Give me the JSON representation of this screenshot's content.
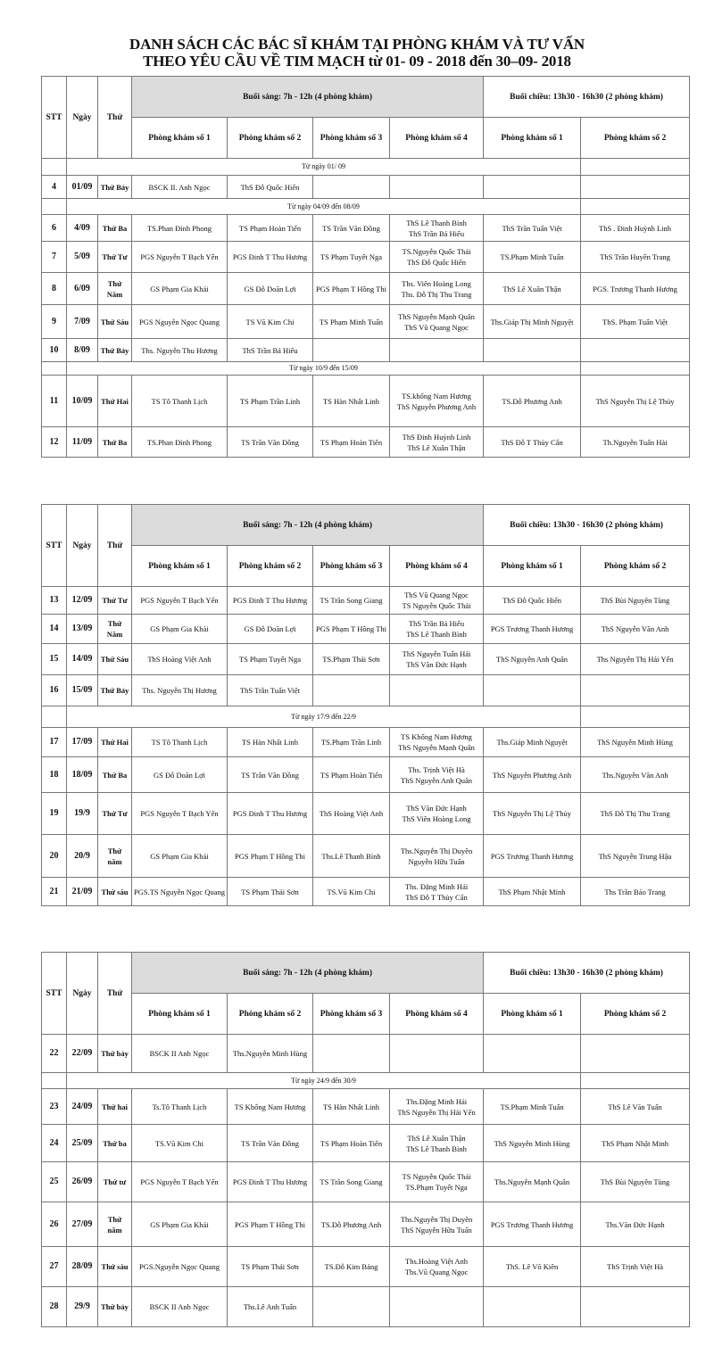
{
  "title": {
    "line1": "DANH SÁCH CÁC BÁC SĨ KHÁM TẠI PHÒNG KHÁM VÀ TƯ VẤN",
    "line2": "THEO YÊU CẦU VỀ TIM MẠCH từ 01- 09 - 2018 đến 30–09- 2018"
  },
  "header": {
    "stt": "STT",
    "date": "Ngày",
    "weekday": "Thứ",
    "morning": "Buổi sáng: 7h - 12h (4 phòng khám)",
    "afternoon": "Buổi chiều: 13h30 - 16h30 (2 phòng khám)",
    "rooms": [
      "Phòng khám số 1",
      "Phòng khám số 2",
      "Phòng khám số 3",
      "Phòng khám số 4",
      "Phòng khám số 1",
      "Phòng khám số 2"
    ]
  },
  "colors": {
    "morning_header_bg": "#dcdcdc",
    "border": "#777777"
  },
  "tables": [
    {
      "rows": [
        {
          "type": "section",
          "text": "Từ ngày 01/ 09"
        },
        {
          "type": "day",
          "stt": "4",
          "date": "01/09",
          "weekday": "Thứ Bảy",
          "cells": [
            [
              "BSCK II. Anh Ngọc"
            ],
            [
              "ThS Đỗ Quốc Hiển"
            ],
            [],
            [],
            [],
            []
          ]
        },
        {
          "type": "section",
          "text": "Từ ngày 04/09 đến 08/09"
        },
        {
          "type": "day",
          "stt": "6",
          "date": "4/09",
          "weekday": "Thứ Ba",
          "cells": [
            [
              "TS.Phan Đình Phong"
            ],
            [
              "TS Phạm Hoàn Tiến"
            ],
            [
              "TS Trần Văn Đồng"
            ],
            [
              "ThS Lê Thanh Bình",
              "ThS Trần Bá Hiếu"
            ],
            [
              "ThS Trần Tuấn Việt"
            ],
            [
              "ThS . Đinh Huỳnh Linh"
            ]
          ]
        },
        {
          "type": "day",
          "stt": "7",
          "date": "5/09",
          "weekday": "Thứ Tư",
          "cells": [
            [
              "PGS Nguyễn T Bạch Yến"
            ],
            [
              "PGS Đinh T Thu Hương"
            ],
            [
              "TS Phạm Tuyết Nga"
            ],
            [
              "TS.Nguyễn Quốc Thái",
              "ThS Đỗ Quốc Hiển"
            ],
            [
              "TS.Phạm Minh Tuấn"
            ],
            [
              "ThS Trần Huyền Trang"
            ]
          ]
        },
        {
          "type": "day",
          "stt": "8",
          "date": "6/09",
          "weekday": "Thứ Năm",
          "cells": [
            [
              "GS Phạm Gia Khải"
            ],
            [
              "GS Đỗ Doãn Lợi"
            ],
            [
              "PGS Phạm T Hồng Thi"
            ],
            [
              "Ths. Viên Hoàng Long",
              "Ths. Đỗ Thị Thu Trang"
            ],
            [
              "ThS Lê Xuân Thận"
            ],
            [
              "PGS. Trương Thanh Hương"
            ]
          ]
        },
        {
          "type": "day",
          "stt": "9",
          "date": "7/09",
          "weekday": "Thứ Sáu",
          "cells": [
            [
              "PGS Nguyễn Ngọc Quang"
            ],
            [
              "TS Vũ Kim Chi"
            ],
            [
              "TS Phạm Minh Tuấn"
            ],
            [
              "ThS Nguyễn Mạnh Quân",
              "ThS Vũ Quang Ngọc"
            ],
            [
              "Ths.Giáp Thị Minh Nguyệt"
            ],
            [
              "ThS. Phạm Tuấn Việt"
            ]
          ]
        },
        {
          "type": "day",
          "stt": "10",
          "date": "8/09",
          "weekday": "Thứ Bảy",
          "cells": [
            [
              "Ths. Nguyễn Thu Hương"
            ],
            [
              "ThS Trần Bá Hiếu"
            ],
            [],
            [],
            [],
            []
          ]
        },
        {
          "type": "section",
          "text": "Từ ngày 10/9 đến 15/09"
        },
        {
          "type": "day",
          "stt": "11",
          "date": "10/09",
          "weekday": "Thứ Hai",
          "cells": [
            [
              "TS Tô Thanh Lịch"
            ],
            [
              "TS Phạm Trần Linh"
            ],
            [
              "TS Hàn Nhất Linh"
            ],
            [
              "TS.khổng Nam Hương",
              "ThS Nguyễn Phương Anh"
            ],
            [
              "TS.Đỗ Phương Anh"
            ],
            [
              "ThS Nguyễn Thị Lệ Thủy"
            ]
          ]
        },
        {
          "type": "day",
          "stt": "12",
          "date": "11/09",
          "weekday": "Thứ Ba",
          "cells": [
            [
              "TS.Phan Đình Phong"
            ],
            [
              "TS Trần Văn Đồng"
            ],
            [
              "TS Phạm Hoàn Tiến"
            ],
            [
              "ThS Đinh Huỳnh Linh",
              "ThS Lê Xuân Thận"
            ],
            [
              "ThS Đỗ T Thùy Cẩn"
            ],
            [
              "Th.Nguyễn Tuấn Hải"
            ]
          ]
        }
      ]
    },
    {
      "rows": [
        {
          "type": "day",
          "stt": "13",
          "date": "12/09",
          "weekday": "Thứ Tư",
          "cells": [
            [
              "PGS Nguyễn T Bạch Yến"
            ],
            [
              "PGS Đinh T Thu Hương"
            ],
            [
              "TS Trần Song Giang"
            ],
            [
              "ThS Vũ Quang Ngọc",
              "TS Nguyễn Quốc Thái"
            ],
            [
              "ThS Đỗ Quốc Hiển"
            ],
            [
              "ThS Bùi Nguyên Tùng"
            ]
          ]
        },
        {
          "type": "day",
          "stt": "14",
          "date": "13/09",
          "weekday": "Thứ Năm",
          "cells": [
            [
              "GS Phạm Gia Khải"
            ],
            [
              "GS Đỗ Doãn Lợi"
            ],
            [
              "PGS Phạm T Hồng Thi"
            ],
            [
              "ThS Trần Bá Hiếu",
              "ThS Lê Thanh Bình"
            ],
            [
              "PGS Trương Thanh Hương"
            ],
            [
              "ThS Nguyễn Văn Anh"
            ]
          ]
        },
        {
          "type": "day",
          "stt": "15",
          "date": "14/09",
          "weekday": "Thứ Sáu",
          "cells": [
            [
              "ThS Hoàng Việt Anh"
            ],
            [
              "TS Phạm Tuyết Nga"
            ],
            [
              "TS.Phạm Thái Sơn"
            ],
            [
              "ThS Nguyễn Tuấn Hải",
              "ThS Văn Đức Hạnh"
            ],
            [
              "ThS Nguyễn Anh Quân"
            ],
            [
              "Ths Nguyễn Thị Hải Yến"
            ]
          ]
        },
        {
          "type": "day",
          "stt": "16",
          "date": "15/09",
          "weekday": "Thứ Bảy",
          "cells": [
            [
              "Ths. Nguyễn Thị Hương"
            ],
            [
              "ThS Trần Tuấn Việt"
            ],
            [],
            [],
            [],
            []
          ]
        },
        {
          "type": "section",
          "text": "Từ ngày 17/9 đến 22/9"
        },
        {
          "type": "day",
          "stt": "17",
          "date": "17/09",
          "weekday": "Thứ Hai",
          "cells": [
            [
              "TS Tô Thanh Lịch"
            ],
            [
              "TS Hàn Nhất Linh"
            ],
            [
              "TS.Phạm Trần Linh"
            ],
            [
              "TS Khổng Nam Hương",
              "ThS Nguyễn Mạnh Quân"
            ],
            [
              "Ths.Giáp Minh Nguyệt"
            ],
            [
              "ThS Nguyễn Minh Hùng"
            ]
          ]
        },
        {
          "type": "day",
          "stt": "18",
          "date": "18/09",
          "weekday": "Thứ Ba",
          "cells": [
            [
              "GS Đỗ Doãn Lợi"
            ],
            [
              "TS Trần Văn Đồng"
            ],
            [
              "TS Phạm Hoàn Tiến"
            ],
            [
              "Ths. Trịnh Việt Hà",
              "ThS Nguyễn Anh Quân"
            ],
            [
              "ThS Nguyễn Phương Anh"
            ],
            [
              "Ths.Nguyễn Văn Anh"
            ]
          ]
        },
        {
          "type": "day",
          "stt": "19",
          "date": "19/9",
          "weekday": "Thứ Tư",
          "cells": [
            [
              "PGS Nguyễn T Bạch Yến"
            ],
            [
              "PGS Đinh T Thu Hương"
            ],
            [
              "ThS Hoàng Việt Anh"
            ],
            [
              "ThS Văn Đức Hạnh",
              "ThS Viên Hoàng Long"
            ],
            [
              "ThS Nguyễn Thị Lệ Thủy"
            ],
            [
              "ThS Đỗ Thị Thu Trang"
            ]
          ]
        },
        {
          "type": "day",
          "stt": "20",
          "date": "20/9",
          "weekday": "Thứ năm",
          "cells": [
            [
              "GS Phạm Gia Khải"
            ],
            [
              "PGS Phạm T Hồng Thi"
            ],
            [
              "Ths.Lê Thanh Bình"
            ],
            [
              "Ths.Nguyễn Thị Duyên",
              "Nguyễn Hữu Tuấn"
            ],
            [
              "PGS Trương Thanh Hương"
            ],
            [
              "ThS Nguyễn Trung Hậu"
            ]
          ]
        },
        {
          "type": "day",
          "stt": "21",
          "date": "21/09",
          "weekday": "Thứ sáu",
          "cells": [
            [
              "PGS.TS Nguyễn Ngọc Quang"
            ],
            [
              "TS Phạm Thái Sơn"
            ],
            [
              "TS.Vũ Kim Chi"
            ],
            [
              "Ths. Đặng Minh Hải",
              "ThS Đỗ T Thùy Cẩn"
            ],
            [
              "ThS Phạm Nhật Minh"
            ],
            [
              "Ths Trần Bảo Trang"
            ]
          ]
        }
      ]
    },
    {
      "rows": [
        {
          "type": "day",
          "stt": "22",
          "date": "22/09",
          "weekday": "Thứ bảy",
          "cells": [
            [
              "BSCK II Anh Ngọc"
            ],
            [
              "Ths.Nguyễn Minh Hùng"
            ],
            [],
            [],
            [],
            []
          ]
        },
        {
          "type": "section",
          "text": "Từ ngày 24/9 đến 30/9"
        },
        {
          "type": "day",
          "stt": "23",
          "date": "24/09",
          "weekday": "Thứ hai",
          "cells": [
            [
              "Ts.Tô Thanh Lịch"
            ],
            [
              "TS Khổng Nam Hương"
            ],
            [
              "TS Hàn Nhất Linh"
            ],
            [
              "Ths.Đặng Minh Hải",
              "ThS Nguyễn Thị Hải Yến"
            ],
            [
              "TS.Phạm Minh Tuấn"
            ],
            [
              "ThS Lê Văn Tuấn"
            ]
          ]
        },
        {
          "type": "day",
          "stt": "24",
          "date": "25/09",
          "weekday": "Thứ ba",
          "cells": [
            [
              "TS.Vũ Kim Chi"
            ],
            [
              "TS Trần Văn Đồng"
            ],
            [
              "TS Phạm Hoàn Tiến"
            ],
            [
              "ThS Lê Xuân Thận",
              "ThS Lê Thanh Bình"
            ],
            [
              "ThS Nguyễn Minh Hùng"
            ],
            [
              "ThS Phạm Nhật Minh"
            ]
          ]
        },
        {
          "type": "day",
          "stt": "25",
          "date": "26/09",
          "weekday": "Thứ tư",
          "cells": [
            [
              "PGS Nguyễn T Bạch Yến"
            ],
            [
              "PGS Đinh T Thu Hương"
            ],
            [
              "TS Trần Song Giang"
            ],
            [
              "TS Nguyễn Quốc Thái",
              "TS.Phạm Tuyết Nga"
            ],
            [
              "Ths.Nguyễn Mạnh Quân"
            ],
            [
              "ThS Bùi Nguyên Tùng"
            ]
          ]
        },
        {
          "type": "day",
          "stt": "26",
          "date": "27/09",
          "weekday": "Thứ năm",
          "cells": [
            [
              "GS Phạm Gia Khải"
            ],
            [
              "PGS Phạm T Hồng Thi"
            ],
            [
              "TS.Đỗ Phương Anh"
            ],
            [
              "Ths.Nguyễn Thị Duyên",
              "ThS Nguyễn Hữu Tuấn"
            ],
            [
              "PGS Trương Thanh Hương"
            ],
            [
              "Ths.Văn Đức Hạnh"
            ]
          ]
        },
        {
          "type": "day",
          "stt": "27",
          "date": "28/09",
          "weekday": "Thứ sáu",
          "cells": [
            [
              "PGS.Nguyễn Ngọc Quang"
            ],
            [
              "TS Phạm Thái Sơn"
            ],
            [
              "TS.Đỗ Kim Bảng"
            ],
            [
              "Ths.Hoàng Việt Anh",
              "Ths.Vũ Quang Ngọc"
            ],
            [
              "ThS. Lê Võ Kiên"
            ],
            [
              "ThS Trịnh Việt Hà"
            ]
          ]
        },
        {
          "type": "day",
          "stt": "28",
          "date": "29/9",
          "weekday": "Thứ bảy",
          "cells": [
            [
              "BSCK II Anh Ngọc"
            ],
            [
              "Ths.Lê Anh Tuấn"
            ],
            [],
            [],
            [],
            []
          ]
        }
      ]
    }
  ]
}
